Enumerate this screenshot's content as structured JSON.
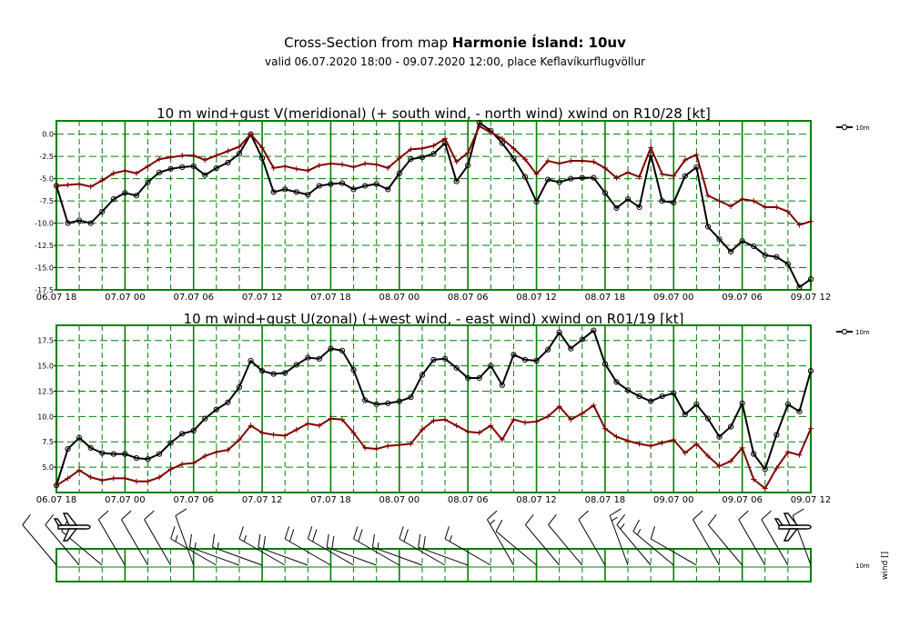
{
  "header": {
    "title_prefix": "Cross-Section from map ",
    "title_bold": "Harmonie Ísland: 10uv",
    "subtitle": "valid 06.07.2020 18:00 - 09.07.2020 12:00, place Keflavíkurflugvöllur"
  },
  "colors": {
    "grid": "#008000",
    "wind_series": "#000000",
    "gust_series": "#800000"
  },
  "chart_data": [
    {
      "type": "line",
      "title": "10 m wind+gust V(meridional) (+ south wind, - north wind) xwind on R10/28 [kt]",
      "x_tick_labels": [
        "06.07 18",
        "07.07 00",
        "07.07 06",
        "07.07 12",
        "07.07 18",
        "08.07 00",
        "08.07 06",
        "08.07 12",
        "08.07 18",
        "09.07 00",
        "09.07 06",
        "09.07 12"
      ],
      "x_range_hours": [
        0,
        66
      ],
      "ylim": [
        -17.5,
        1.5
      ],
      "y_ticks": [
        0.0,
        -2.5,
        -5.0,
        -7.5,
        -10.0,
        -12.5,
        -15.0,
        -17.5
      ],
      "y_tick_labels": [
        "0.0",
        "-2.5",
        "-5.0",
        "-7.5",
        "-10.0",
        "-12.5",
        "-15.0",
        "-17.5"
      ],
      "legend_entries": [
        "10m"
      ],
      "legend_position": "top-right",
      "grid": true,
      "series": [
        {
          "name": "10m",
          "color": "#000000",
          "marker": "circle",
          "values": [
            -5.8,
            -10.0,
            -9.7,
            -10.0,
            -8.7,
            -7.3,
            -6.6,
            -6.9,
            -5.4,
            -4.3,
            -3.9,
            -3.7,
            -3.6,
            -4.6,
            -3.8,
            -3.2,
            -2.2,
            0.0,
            -2.7,
            -6.5,
            -6.2,
            -6.5,
            -6.8,
            -5.8,
            -5.6,
            -5.5,
            -6.2,
            -5.8,
            -5.6,
            -6.2,
            -4.4,
            -2.8,
            -2.6,
            -2.2,
            -1.0,
            -5.3,
            -3.5,
            1.3,
            0.4,
            -1.0,
            -2.7,
            -4.8,
            -7.6,
            -5.1,
            -5.4,
            -5.0,
            -4.9,
            -4.9,
            -6.6,
            -8.3,
            -7.3,
            -8.2,
            -2.3,
            -7.5,
            -7.7,
            -4.7,
            -3.7,
            -10.4,
            -11.8,
            -13.2,
            -12.0,
            -12.6,
            -13.6,
            -13.8,
            -14.6,
            -17.2,
            -16.3
          ]
        },
        {
          "name": "gust",
          "color": "#800000",
          "marker": "plus",
          "values": [
            -5.8,
            -5.7,
            -5.6,
            -5.9,
            -5.2,
            -4.4,
            -4.1,
            -4.4,
            -3.6,
            -2.8,
            -2.6,
            -2.4,
            -2.4,
            -2.9,
            -2.4,
            -1.9,
            -1.4,
            0.0,
            -1.5,
            -3.8,
            -3.6,
            -3.9,
            -4.1,
            -3.5,
            -3.3,
            -3.4,
            -3.7,
            -3.3,
            -3.4,
            -3.8,
            -2.7,
            -1.7,
            -1.6,
            -1.3,
            -0.5,
            -3.1,
            -2.1,
            0.9,
            0.2,
            -0.5,
            -1.6,
            -2.8,
            -4.5,
            -3.0,
            -3.3,
            -3.0,
            -3.0,
            -3.1,
            -3.8,
            -4.9,
            -4.3,
            -4.8,
            -1.5,
            -4.5,
            -4.7,
            -2.9,
            -2.3,
            -6.9,
            -7.5,
            -8.1,
            -7.3,
            -7.5,
            -8.2,
            -8.2,
            -8.7,
            -10.2,
            -9.8
          ]
        }
      ]
    },
    {
      "type": "line",
      "title": "10 m wind+gust U(zonal) (+west wind, - east wind) xwind on R01/19 [kt]",
      "x_tick_labels": [
        "06.07 18",
        "07.07 00",
        "07.07 06",
        "07.07 12",
        "07.07 18",
        "08.07 00",
        "08.07 06",
        "08.07 12",
        "08.07 18",
        "09.07 00",
        "09.07 06",
        "09.07 12"
      ],
      "x_range_hours": [
        0,
        66
      ],
      "ylim": [
        2.5,
        19.0
      ],
      "y_ticks": [
        5.0,
        7.5,
        10.0,
        12.5,
        15.0,
        17.5
      ],
      "y_tick_labels": [
        "5.0",
        "7.5",
        "10.0",
        "12.5",
        "15.0",
        "17.5"
      ],
      "legend_entries": [
        "10m"
      ],
      "legend_position": "top-right",
      "grid": true,
      "series": [
        {
          "name": "10m",
          "color": "#000000",
          "marker": "circle",
          "values": [
            3.2,
            6.8,
            7.9,
            6.9,
            6.4,
            6.3,
            6.3,
            5.9,
            5.8,
            6.3,
            7.4,
            8.3,
            8.6,
            9.8,
            10.7,
            11.4,
            12.9,
            15.5,
            14.5,
            14.2,
            14.3,
            15.1,
            15.8,
            15.7,
            16.7,
            16.5,
            14.6,
            11.6,
            11.2,
            11.3,
            11.5,
            11.9,
            14.1,
            15.6,
            15.7,
            14.8,
            13.8,
            13.8,
            15.0,
            13.1,
            16.1,
            15.6,
            15.5,
            16.6,
            18.3,
            16.7,
            17.6,
            18.5,
            15.2,
            13.4,
            12.6,
            12.0,
            11.5,
            12.0,
            12.3,
            10.2,
            11.2,
            9.8,
            8.0,
            9.0,
            11.3,
            6.3,
            4.8,
            8.2,
            11.2,
            10.5,
            14.5
          ]
        },
        {
          "name": "gust",
          "color": "#800000",
          "marker": "plus",
          "values": [
            3.2,
            3.9,
            4.7,
            4.0,
            3.7,
            3.9,
            3.9,
            3.6,
            3.6,
            4.0,
            4.8,
            5.3,
            5.4,
            6.1,
            6.5,
            6.7,
            7.7,
            9.1,
            8.4,
            8.2,
            8.1,
            8.7,
            9.3,
            9.1,
            9.8,
            9.7,
            8.4,
            6.9,
            6.8,
            7.1,
            7.2,
            7.3,
            8.7,
            9.6,
            9.7,
            9.1,
            8.5,
            8.4,
            9.1,
            7.7,
            9.7,
            9.4,
            9.5,
            10.0,
            11.0,
            9.7,
            10.3,
            11.1,
            8.8,
            8.0,
            7.6,
            7.3,
            7.1,
            7.4,
            7.7,
            6.4,
            7.3,
            6.1,
            5.1,
            5.6,
            6.9,
            3.8,
            2.9,
            4.9,
            6.5,
            6.2,
            8.8
          ]
        }
      ]
    },
    {
      "type": "wind_barbs",
      "ylabel": "wind []",
      "level_label": "10m",
      "barbs": [
        {
          "dir_deg": 320,
          "speed_kt": 10
        },
        {
          "dir_deg": 320,
          "speed_kt": 10
        },
        {
          "dir_deg": 310,
          "speed_kt": 10
        },
        {
          "dir_deg": 330,
          "speed_kt": 10
        },
        {
          "dir_deg": 330,
          "speed_kt": 10
        },
        {
          "dir_deg": 330,
          "speed_kt": 10
        },
        {
          "dir_deg": 340,
          "speed_kt": 10
        },
        {
          "dir_deg": 300,
          "speed_kt": 15
        },
        {
          "dir_deg": 290,
          "speed_kt": 15
        },
        {
          "dir_deg": 290,
          "speed_kt": 15
        },
        {
          "dir_deg": 300,
          "speed_kt": 15
        },
        {
          "dir_deg": 290,
          "speed_kt": 20
        },
        {
          "dir_deg": 300,
          "speed_kt": 20
        },
        {
          "dir_deg": 300,
          "speed_kt": 20
        },
        {
          "dir_deg": 290,
          "speed_kt": 20
        },
        {
          "dir_deg": 300,
          "speed_kt": 20
        },
        {
          "dir_deg": 290,
          "speed_kt": 15
        },
        {
          "dir_deg": 300,
          "speed_kt": 20
        },
        {
          "dir_deg": 290,
          "speed_kt": 20
        },
        {
          "dir_deg": 300,
          "speed_kt": 15
        },
        {
          "dir_deg": 330,
          "speed_kt": 15
        },
        {
          "dir_deg": 310,
          "speed_kt": 10
        },
        {
          "dir_deg": 320,
          "speed_kt": 10
        },
        {
          "dir_deg": 320,
          "speed_kt": 10
        },
        {
          "dir_deg": 330,
          "speed_kt": 10
        },
        {
          "dir_deg": 340,
          "speed_kt": 15
        },
        {
          "dir_deg": 320,
          "speed_kt": 15
        },
        {
          "dir_deg": 310,
          "speed_kt": 15
        },
        {
          "dir_deg": 300,
          "speed_kt": 10
        },
        {
          "dir_deg": 330,
          "speed_kt": 10
        },
        {
          "dir_deg": 320,
          "speed_kt": 10
        },
        {
          "dir_deg": 330,
          "speed_kt": 10
        },
        {
          "dir_deg": 330,
          "speed_kt": 10
        },
        {
          "dir_deg": 340,
          "speed_kt": 10
        }
      ]
    }
  ]
}
